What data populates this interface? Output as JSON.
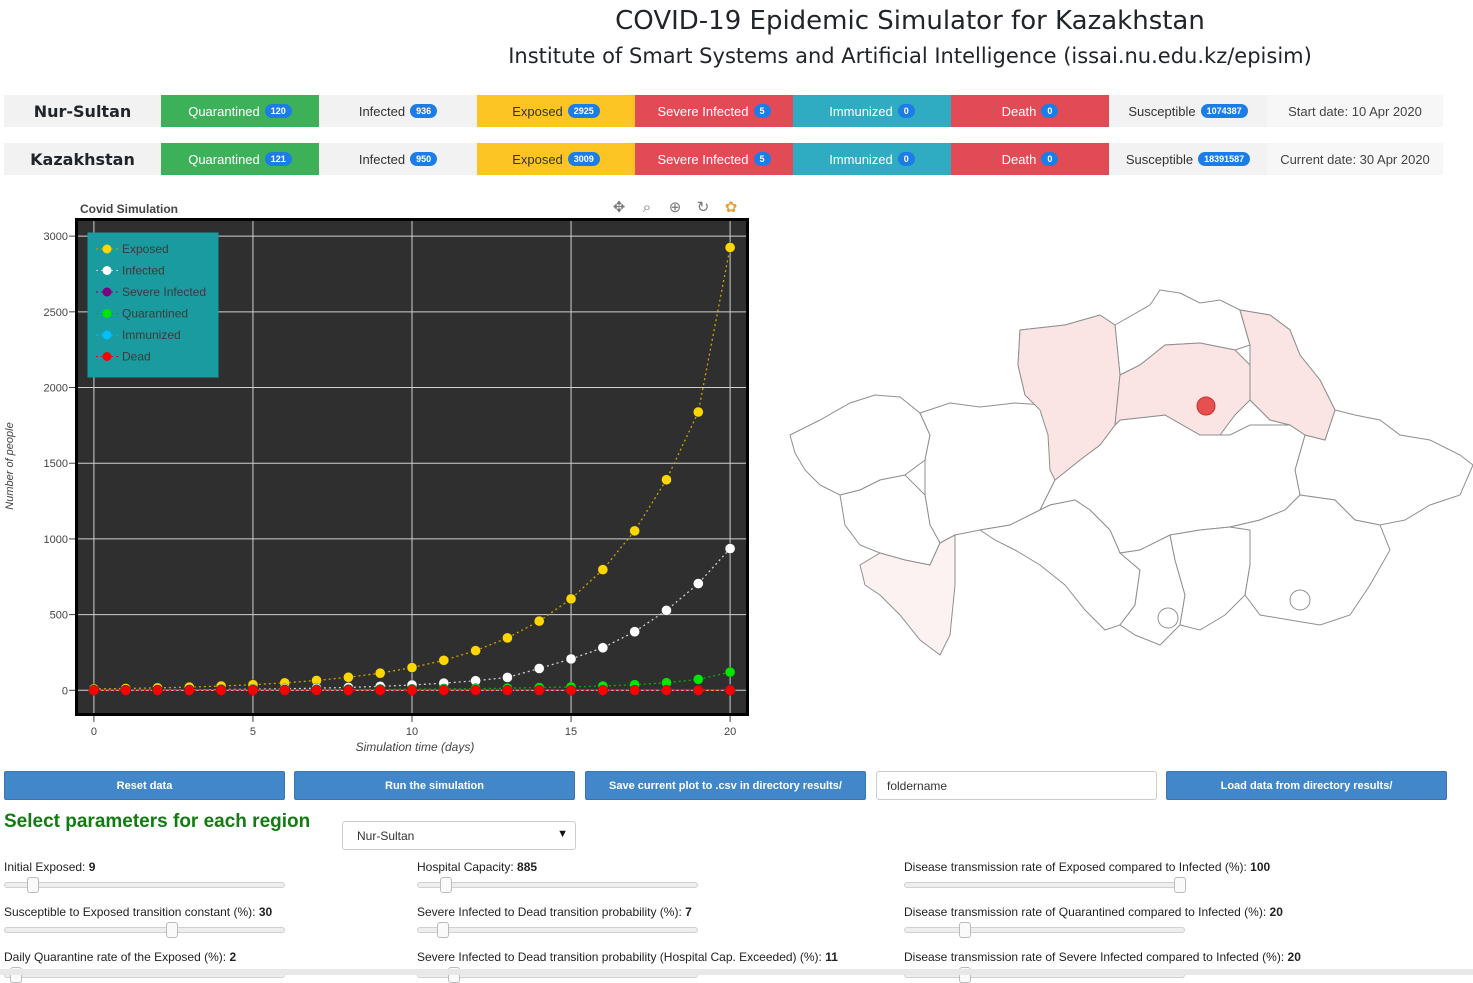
{
  "header": {
    "title": "COVID-19 Epidemic Simulator for Kazakhstan",
    "subtitle": "Institute of Smart Systems and Artificial Intelligence (issai.nu.edu.kz/episim)"
  },
  "stats_rows": [
    {
      "region": "Nur-Sultan",
      "quarantined_label": "Quarantined",
      "quarantined": "120",
      "infected_label": "Infected",
      "infected": "936",
      "exposed_label": "Exposed",
      "exposed": "2925",
      "severe_label": "Severe Infected",
      "severe": "5",
      "immunized_label": "Immunized",
      "immunized": "0",
      "death_label": "Death",
      "death": "0",
      "susceptible_label": "Susceptible",
      "susceptible": "1074387",
      "date_text": "Start date: 10 Apr 2020"
    },
    {
      "region": "Kazakhstan",
      "quarantined_label": "Quarantined",
      "quarantined": "121",
      "infected_label": "Infected",
      "infected": "950",
      "exposed_label": "Exposed",
      "exposed": "3009",
      "severe_label": "Severe Infected",
      "severe": "5",
      "immunized_label": "Immunized",
      "immunized": "0",
      "death_label": "Death",
      "death": "0",
      "susceptible_label": "Susceptible",
      "susceptible": "18391587",
      "date_text": "Current date: 30 Apr 2020"
    }
  ],
  "toolbar": [
    "pan-icon",
    "box-zoom-icon",
    "wheel-zoom-icon",
    "reset-icon",
    "bokeh-logo-icon"
  ],
  "chart_data": {
    "type": "scatter",
    "title": "Covid Simulation",
    "xlabel": "Simulation time (days)",
    "ylabel": "Number of people",
    "xlim": [
      -0.5,
      20.5
    ],
    "ylim": [
      -150,
      3100
    ],
    "xticks": [
      0,
      5,
      10,
      15,
      20
    ],
    "yticks": [
      0,
      500,
      1000,
      1500,
      2000,
      2500,
      3000
    ],
    "grid": true,
    "legend_position": "top-left",
    "x": [
      0,
      1,
      2,
      3,
      4,
      5,
      6,
      7,
      8,
      9,
      10,
      11,
      12,
      13,
      14,
      15,
      16,
      17,
      18,
      19,
      20
    ],
    "series": [
      {
        "name": "Exposed",
        "color": "#ffd700",
        "line_color": "#c9a400",
        "values": [
          9,
          12,
          16,
          21,
          28,
          37,
          49,
          65,
          86,
          113,
          150,
          198,
          262,
          346,
          457,
          604,
          797,
          1053,
          1391,
          1838,
          2925
        ]
      },
      {
        "name": "Infected",
        "color": "#ffffff",
        "line_color": "#cccccc",
        "values": [
          0,
          1,
          2,
          3,
          5,
          7,
          10,
          14,
          19,
          26,
          35,
          47,
          63,
          85,
          144,
          207,
          281,
          387,
          528,
          705,
          936
        ]
      },
      {
        "name": "Severe Infected",
        "color": "#800080",
        "line_color": "#800080",
        "values": [
          0,
          0,
          0,
          0,
          0,
          0,
          0,
          0,
          0,
          0,
          0,
          0,
          0,
          0,
          1,
          1,
          1,
          2,
          3,
          4,
          5
        ]
      },
      {
        "name": "Quarantined",
        "color": "#00e600",
        "line_color": "#00b300",
        "values": [
          0,
          0,
          1,
          1,
          2,
          2,
          3,
          4,
          5,
          6,
          7,
          9,
          11,
          14,
          18,
          22,
          28,
          37,
          50,
          72,
          120
        ]
      },
      {
        "name": "Immunized",
        "color": "#00bfff",
        "line_color": "#00bfff",
        "values": [
          0,
          0,
          0,
          0,
          0,
          0,
          0,
          0,
          0,
          0,
          0,
          0,
          0,
          0,
          0,
          0,
          0,
          0,
          0,
          0,
          0
        ]
      },
      {
        "name": "Dead",
        "color": "#ff0000",
        "line_color": "#ff0000",
        "values": [
          0,
          0,
          0,
          0,
          0,
          0,
          0,
          0,
          0,
          0,
          0,
          0,
          0,
          0,
          0,
          0,
          0,
          0,
          0,
          0,
          0
        ]
      }
    ]
  },
  "map": {
    "highlighted_fill": "#fbe4e4",
    "light_fill": "#fdf2f2",
    "marker_color": "#e65050"
  },
  "buttons": {
    "reset": "Reset data",
    "run": "Run the simulation",
    "save": "Save current plot to .csv in directory results/",
    "folder_value": "foldername",
    "load": "Load data from directory results/"
  },
  "params": {
    "section_title": "Select parameters for each region",
    "region_select": "Nur-Sultan",
    "items": [
      {
        "label": "Initial Exposed: ",
        "value": "9",
        "level": 0.08
      },
      {
        "label": "Hospital Capacity: ",
        "value": "885",
        "level": 0.08
      },
      {
        "label": "Disease transmission rate of Exposed compared to Infected (%): ",
        "value": "100",
        "level": 1.0
      },
      {
        "label": "Susceptible to Exposed transition constant (%): ",
        "value": "30",
        "level": 0.6
      },
      {
        "label": "Severe Infected to Dead transition probability (%): ",
        "value": "7",
        "level": 0.07
      },
      {
        "label": "Disease transmission rate of Quarantined compared to Infected (%): ",
        "value": "20",
        "level": 0.2
      },
      {
        "label": "Daily Quarantine rate of the Exposed (%): ",
        "value": "2",
        "level": 0.02
      },
      {
        "label": "Severe Infected to Dead transition probability (Hospital Cap. Exceeded) (%): ",
        "value": "11",
        "level": 0.11
      },
      {
        "label": "Disease transmission rate of Severe Infected compared to Infected (%): ",
        "value": "20",
        "level": 0.2
      }
    ]
  }
}
